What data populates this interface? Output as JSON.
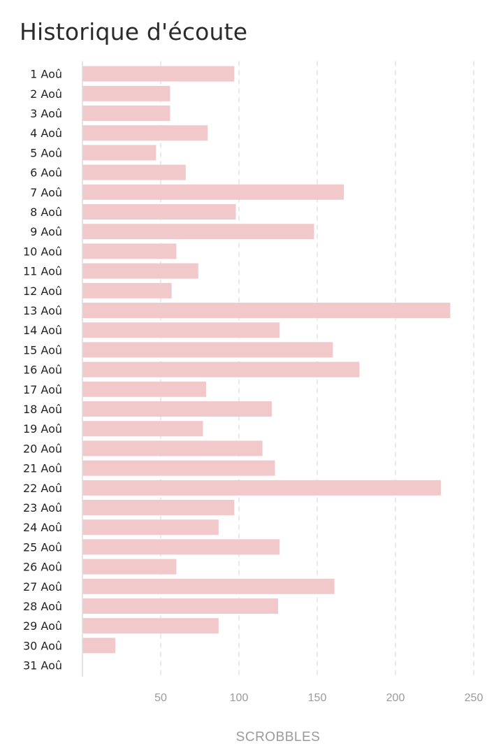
{
  "chart_data": {
    "type": "bar",
    "orientation": "horizontal",
    "title": "Historique d'écoute",
    "xlabel": "SCROBBLES",
    "ylabel": "",
    "categories": [
      "1 Aoû",
      "2 Aoû",
      "3 Aoû",
      "4 Aoû",
      "5 Aoû",
      "6 Aoû",
      "7 Aoû",
      "8 Aoû",
      "9 Aoû",
      "10 Aoû",
      "11 Aoû",
      "12 Aoû",
      "13 Aoû",
      "14 Aoû",
      "15 Aoû",
      "16 Aoû",
      "17 Aoû",
      "18 Aoû",
      "19 Aoû",
      "20 Aoû",
      "21 Aoû",
      "22 Aoû",
      "23 Aoû",
      "24 Aoû",
      "25 Aoû",
      "26 Aoû",
      "27 Aoû",
      "28 Aoû",
      "29 Aoû",
      "30 Aoû",
      "31 Aoû"
    ],
    "values": [
      97,
      56,
      56,
      80,
      47,
      66,
      167,
      98,
      148,
      60,
      74,
      57,
      235,
      126,
      160,
      177,
      79,
      121,
      77,
      115,
      123,
      229,
      97,
      87,
      126,
      60,
      161,
      125,
      87,
      21,
      0
    ],
    "xlim": [
      0,
      250
    ],
    "xticks": [
      50,
      100,
      150,
      200,
      250
    ],
    "grid": true,
    "bar_color": "#f1c9cb",
    "grid_color": "#e2e2e2"
  }
}
